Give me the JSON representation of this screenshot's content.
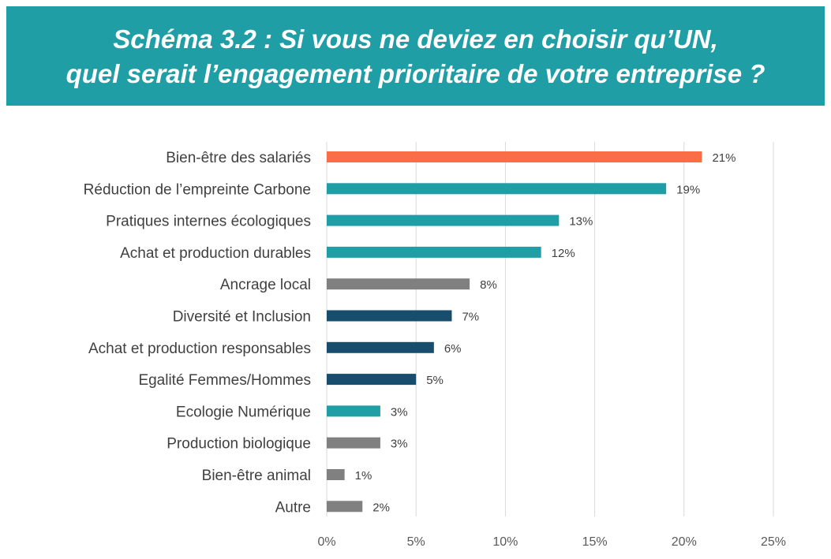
{
  "title": {
    "line1": "Schéma 3.2 : Si vous ne deviez en choisir qu’UN,",
    "line2": "quel serait l’engagement prioritaire de votre entreprise ?"
  },
  "colors": {
    "banner": "#1f9ea6",
    "orange": "#f96e46",
    "teal": "#1f9ea6",
    "gray": "#808080",
    "navy": "#174e6e",
    "grid": "#d9d9d9"
  },
  "chart_data": {
    "type": "bar",
    "orientation": "horizontal",
    "categories": [
      "Bien-être des salariés",
      "Réduction de l’empreinte Carbone",
      "Pratiques internes écologiques",
      "Achat et production durables",
      "Ancrage local",
      "Diversité et Inclusion",
      "Achat et production responsables",
      "Egalité Femmes/Hommes",
      "Ecologie Numérique",
      "Production biologique",
      "Bien-être animal",
      "Autre"
    ],
    "values": [
      21,
      19,
      13,
      12,
      8,
      7,
      6,
      5,
      3,
      3,
      1,
      2
    ],
    "data_labels": [
      "21%",
      "19%",
      "13%",
      "12%",
      "8%",
      "7%",
      "6%",
      "5%",
      "3%",
      "3%",
      "1%",
      "2%"
    ],
    "bar_colors": [
      "#f96e46",
      "#1f9ea6",
      "#1f9ea6",
      "#1f9ea6",
      "#808080",
      "#174e6e",
      "#174e6e",
      "#174e6e",
      "#1f9ea6",
      "#808080",
      "#808080",
      "#808080"
    ],
    "xlim": [
      0,
      25
    ],
    "xticks": [
      0,
      5,
      10,
      15,
      20,
      25
    ],
    "xtick_labels": [
      "0%",
      "5%",
      "10%",
      "15%",
      "20%",
      "25%"
    ],
    "grid": true,
    "legend": false
  }
}
